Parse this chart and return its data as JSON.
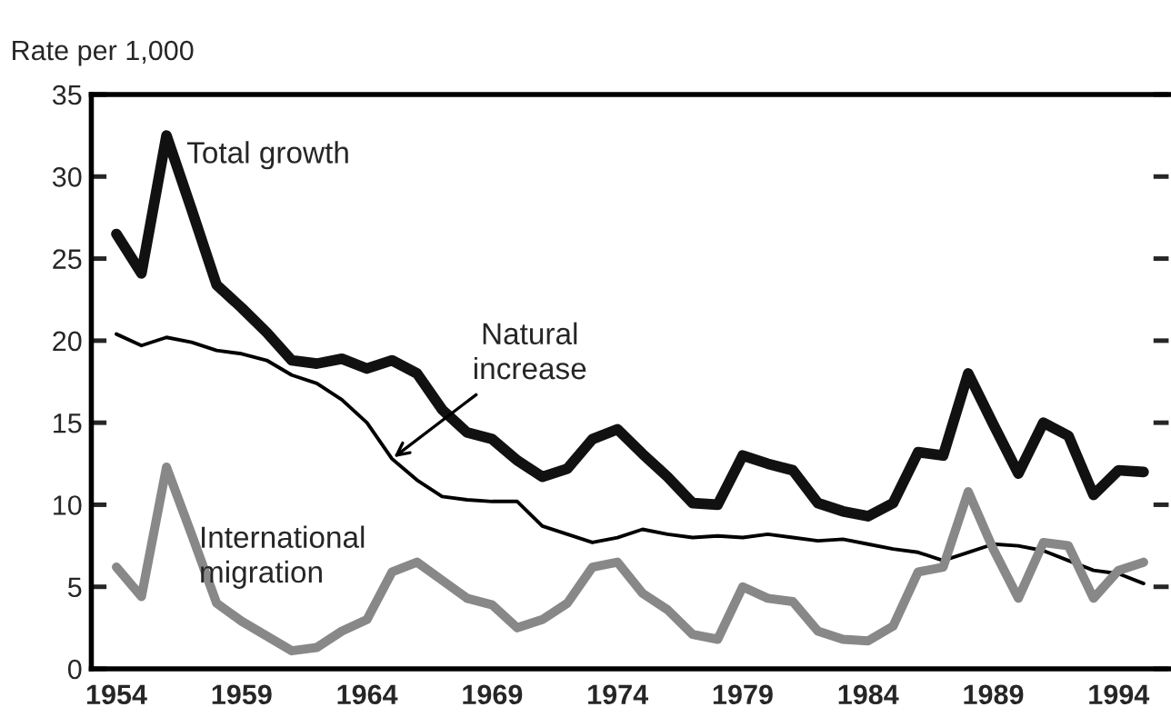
{
  "chart_data": {
    "type": "line",
    "ylabel": "Rate per 1,000",
    "x": [
      1954,
      1955,
      1956,
      1957,
      1958,
      1959,
      1960,
      1961,
      1962,
      1963,
      1964,
      1965,
      1966,
      1967,
      1968,
      1969,
      1970,
      1971,
      1972,
      1973,
      1974,
      1975,
      1976,
      1977,
      1978,
      1979,
      1980,
      1981,
      1982,
      1983,
      1984,
      1985,
      1986,
      1987,
      1988,
      1989,
      1990,
      1991,
      1992,
      1993,
      1994,
      1995
    ],
    "series": [
      {
        "name": "Total growth",
        "color": "#111111",
        "values": [
          26.5,
          24.1,
          32.5,
          28,
          23.4,
          22,
          20.5,
          18.8,
          18.6,
          18.9,
          18.3,
          18.8,
          18,
          15.8,
          14.4,
          14,
          12.7,
          11.7,
          12.2,
          14,
          14.6,
          13.1,
          11.7,
          10.1,
          10.0,
          13.0,
          12.5,
          12.1,
          10.1,
          9.6,
          9.3,
          10.1,
          13.2,
          13.0,
          18.0,
          14.9,
          11.9,
          15.0,
          14.2,
          10.6,
          12.1,
          12.0
        ]
      },
      {
        "color": "#000000",
        "values": [
          20.4,
          19.7,
          20.2,
          19.9,
          19.4,
          19.2,
          18.8,
          17.9,
          17.4,
          16.4,
          15.0,
          12.8,
          11.5,
          10.5,
          10.3,
          10.2,
          10.2,
          8.7,
          8.2,
          7.7,
          8.0,
          8.5,
          8.2,
          8.0,
          8.1,
          8.0,
          8.2,
          8.0,
          7.8,
          7.9,
          7.6,
          7.3,
          7.1,
          6.6,
          7.1,
          7.6,
          7.5,
          7.2,
          6.6,
          6.0,
          5.8,
          5.2
        ]
      },
      {
        "name": "International\nmigration",
        "color": "#888888",
        "values": [
          6.2,
          4.4,
          12.3,
          8.2,
          4.0,
          2.9,
          2.0,
          1.1,
          1.3,
          2.3,
          3.0,
          5.9,
          6.5,
          5.4,
          4.3,
          3.9,
          2.5,
          3.0,
          4.0,
          6.2,
          6.5,
          4.6,
          3.6,
          2.1,
          1.8,
          5.0,
          4.3,
          4.1,
          2.3,
          1.8,
          1.7,
          2.6,
          5.9,
          6.2,
          10.8,
          7.3,
          4.3,
          7.7,
          7.5,
          4.3,
          6.0,
          6.5
        ]
      }
    ],
    "xlim": [
      1953,
      1996
    ],
    "ylim": [
      0,
      35
    ],
    "xticks": [
      1954,
      1959,
      1964,
      1969,
      1974,
      1979,
      1984,
      1989,
      1994
    ],
    "yticks": [
      0,
      5,
      10,
      15,
      20,
      25,
      30,
      35
    ],
    "annotations": [
      {
        "text": "Natural\nincrease",
        "x": 1965,
        "y": 12.8
      }
    ],
    "grid": false,
    "legend": false,
    "marker": "none",
    "line_style": "solid"
  }
}
